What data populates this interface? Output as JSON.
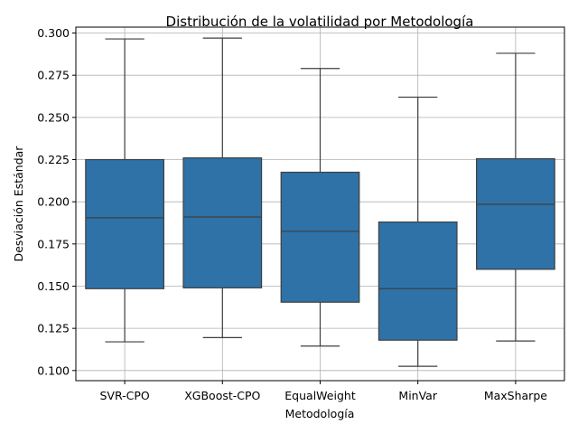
{
  "chart_data": {
    "type": "box",
    "title": "Distribución de la volatilidad por Metodología",
    "xlabel": "Metodología",
    "ylabel": "Desviación Estándar",
    "ylim": [
      0.094,
      0.3035
    ],
    "yticks": [
      "0.100",
      "0.125",
      "0.150",
      "0.175",
      "0.200",
      "0.225",
      "0.250",
      "0.275",
      "0.300"
    ],
    "grid": true,
    "box_color": "#2e72a8",
    "categories": [
      "SVR-CPO",
      "XGBoost-CPO",
      "EqualWeight",
      "MinVar",
      "MaxSharpe"
    ],
    "boxes": [
      {
        "whisker_low": 0.117,
        "q1": 0.1485,
        "median": 0.1905,
        "q3": 0.225,
        "whisker_high": 0.2965
      },
      {
        "whisker_low": 0.1195,
        "q1": 0.149,
        "median": 0.191,
        "q3": 0.226,
        "whisker_high": 0.297
      },
      {
        "whisker_low": 0.1145,
        "q1": 0.1405,
        "median": 0.1825,
        "q3": 0.2175,
        "whisker_high": 0.279
      },
      {
        "whisker_low": 0.1025,
        "q1": 0.118,
        "median": 0.1485,
        "q3": 0.188,
        "whisker_high": 0.262
      },
      {
        "whisker_low": 0.1175,
        "q1": 0.16,
        "median": 0.1985,
        "q3": 0.2255,
        "whisker_high": 0.288
      }
    ]
  }
}
